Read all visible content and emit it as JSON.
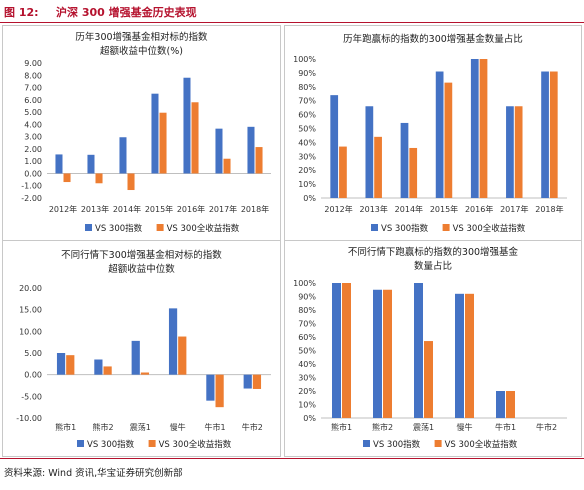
{
  "figure": {
    "number": "图 12:",
    "title": "沪深 300 增强基金历史表现",
    "source": "资料来源:   Wind 资讯,华宝证券研究创新部"
  },
  "colors": {
    "series1": "#4472c4",
    "series2": "#ed7d31"
  },
  "chart_data": [
    {
      "type": "bar",
      "title_lines": [
        "历年300增强基金相对标的指数",
        "超额收益中位数(%)"
      ],
      "categories": [
        "2012年",
        "2013年",
        "2014年",
        "2015年",
        "2016年",
        "2017年",
        "2018年"
      ],
      "series": [
        {
          "name": "VS 300指数",
          "values": [
            1.55,
            1.52,
            2.95,
            6.5,
            7.8,
            3.65,
            3.8
          ]
        },
        {
          "name": "VS 300全收益指数",
          "values": [
            -0.7,
            -0.8,
            -1.35,
            4.95,
            5.8,
            1.2,
            2.15
          ]
        }
      ],
      "ylim": [
        -2,
        9
      ],
      "yticks": [
        "-2.00",
        "-1.00",
        "0.00",
        "1.00",
        "2.00",
        "3.00",
        "4.00",
        "5.00",
        "6.00",
        "7.00",
        "8.00",
        "9.00"
      ],
      "legend": "bottom",
      "grid": false
    },
    {
      "type": "bar",
      "title_lines": [
        "历年跑赢标的指数的300增强基金数量占比"
      ],
      "categories": [
        "2012年",
        "2013年",
        "2014年",
        "2015年",
        "2016年",
        "2017年",
        "2018年"
      ],
      "series": [
        {
          "name": "VS 300指数",
          "values": [
            74,
            66,
            54,
            91,
            100,
            66,
            91
          ]
        },
        {
          "name": "VS 300全收益指数",
          "values": [
            37,
            44,
            36,
            83,
            100,
            66,
            91
          ]
        }
      ],
      "ylim": [
        0,
        100
      ],
      "yticks": [
        "0%",
        "10%",
        "20%",
        "30%",
        "40%",
        "50%",
        "60%",
        "70%",
        "80%",
        "90%",
        "100%"
      ],
      "legend": "bottom",
      "grid": false
    },
    {
      "type": "bar",
      "title_lines": [
        "不同行情下300增强基金相对标的指数",
        "超额收益中位数"
      ],
      "categories": [
        "熊市1",
        "熊市2",
        "震荡1",
        "慢牛",
        "牛市1",
        "牛市2"
      ],
      "series": [
        {
          "name": "VS 300指数",
          "values": [
            5.0,
            3.5,
            7.8,
            15.3,
            -6.0,
            -3.2
          ]
        },
        {
          "name": "VS 300全收益指数",
          "values": [
            4.5,
            1.9,
            0.5,
            8.8,
            -7.5,
            -3.3
          ]
        }
      ],
      "ylim": [
        -10,
        20
      ],
      "yticks": [
        "-10.00",
        "-5.00",
        "0.00",
        "5.00",
        "10.00",
        "15.00",
        "20.00"
      ],
      "legend": "bottom",
      "grid": false
    },
    {
      "type": "bar",
      "title_lines": [
        "不同行情下跑赢标的指数的300增强基金",
        "数量占比"
      ],
      "categories": [
        "熊市1",
        "熊市2",
        "震荡1",
        "慢牛",
        "牛市1",
        "牛市2"
      ],
      "series": [
        {
          "name": "VS 300指数",
          "values": [
            100,
            95,
            100,
            92,
            20,
            0
          ]
        },
        {
          "name": "VS 300全收益指数",
          "values": [
            100,
            95,
            57,
            92,
            20,
            0
          ]
        }
      ],
      "ylim": [
        0,
        100
      ],
      "yticks": [
        "0%",
        "10%",
        "20%",
        "30%",
        "40%",
        "50%",
        "60%",
        "70%",
        "80%",
        "90%",
        "100%"
      ],
      "legend": "bottom",
      "grid": false
    }
  ]
}
